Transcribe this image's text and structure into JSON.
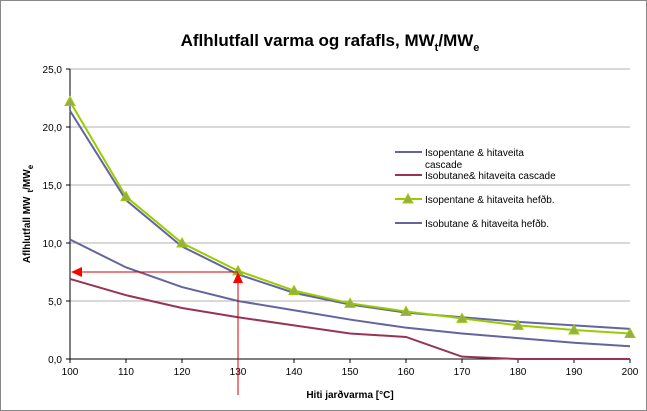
{
  "chart_data": {
    "type": "line",
    "title": [
      "Aflhlutfall varma og rafafls, MW",
      "t",
      "/MW",
      "e"
    ],
    "x_label": "Hiti jarðvarma [°C]",
    "y_label": [
      "Aflhlutfall MW",
      "t",
      "/MW",
      "e"
    ],
    "x": [
      100,
      110,
      120,
      130,
      140,
      150,
      160,
      170,
      180,
      190,
      200
    ],
    "series": [
      {
        "name": "Isopentane & hitaveita cascade",
        "color": "#6464a0",
        "marker": false,
        "values": [
          21.4,
          13.7,
          9.7,
          7.3,
          5.7,
          4.7,
          4.0,
          3.6,
          3.2,
          2.9,
          2.6
        ]
      },
      {
        "name": "Isobutane& hitaveita cascade",
        "color": "#993355",
        "marker": false,
        "values": [
          6.9,
          5.5,
          4.4,
          3.6,
          2.9,
          2.2,
          1.9,
          0.2,
          0,
          0,
          0
        ]
      },
      {
        "name": "Isopentane & hitaveita hefðb.",
        "color": "#99cc00",
        "marker": true,
        "values": [
          22.2,
          14.0,
          10.0,
          7.6,
          5.9,
          4.8,
          4.1,
          3.5,
          2.9,
          2.5,
          2.2
        ]
      },
      {
        "name": "Isobutane & hitaveita hefðb.",
        "color": "#6464a0",
        "marker": false,
        "values": [
          10.3,
          7.9,
          6.2,
          5.0,
          4.2,
          3.4,
          2.7,
          2.2,
          1.8,
          1.4,
          1.1
        ]
      }
    ],
    "xlim": [
      100,
      200
    ],
    "xticks": [
      100,
      110,
      120,
      130,
      140,
      150,
      160,
      170,
      180,
      190,
      200
    ],
    "ylim": [
      0,
      25
    ],
    "yticks": [
      {
        "value": 0,
        "label": "0,0"
      },
      {
        "value": 5,
        "label": "5,0"
      },
      {
        "value": 10,
        "label": "10,0"
      },
      {
        "value": 15,
        "label": "15,0"
      },
      {
        "value": 20,
        "label": "20,0"
      },
      {
        "value": 25,
        "label": "25,0"
      }
    ],
    "grid": true
  }
}
